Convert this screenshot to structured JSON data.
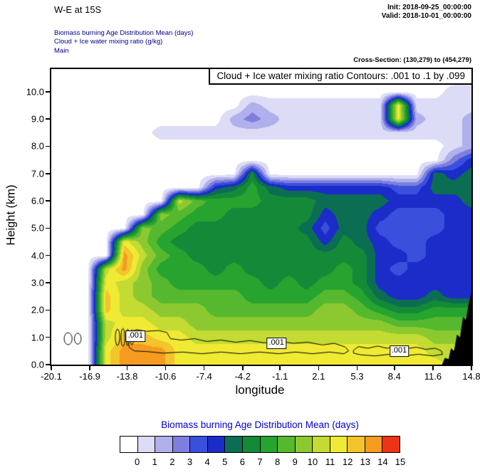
{
  "header": {
    "title": "W-E at 15S",
    "init": "Init: 2018-09-25_00:00:00",
    "valid": "Valid: 2018-10-01_00:00:00",
    "field_lines": [
      "Biomass burning Age Distribution Mean   (days)",
      "Cloud + Ice water mixing ratio   (g/kg)",
      "Main"
    ],
    "cross_section": "Cross-Section: (130,279) to (454,279)"
  },
  "plot": {
    "contour_info": "Cloud + Ice water mixing ratio Contours: .001 to .1 by .099",
    "xlabel": "longitude",
    "ylabel": "Height (km)",
    "x_ticks": [
      "-20.1",
      "-16.9",
      "-13.8",
      "-10.6",
      "-7.4",
      "-4.2",
      "-1.1",
      "2.1",
      "5.3",
      "8.4",
      "11.6",
      "14.8"
    ],
    "y_ticks": [
      "0.0",
      "1.0",
      "2.0",
      "3.0",
      "4.0",
      "5.0",
      "6.0",
      "7.0",
      "8.0",
      "9.0",
      "10.0"
    ]
  },
  "colorbar": {
    "title": "Biomass burning Age Distribution Mean  (days)",
    "labels": [
      "0",
      "1",
      "2",
      "3",
      "4",
      "5",
      "6",
      "7",
      "8",
      "9",
      "10",
      "11",
      "12",
      "13",
      "14",
      "15"
    ]
  },
  "chart_data": {
    "type": "heatmap",
    "field_name": "Biomass burning Age Distribution Mean (days)",
    "overlay_field": "Cloud + Ice water mixing ratio (g/kg)",
    "xlabel": "longitude",
    "ylabel": "Height (km)",
    "x_range": [
      -20.1,
      14.8
    ],
    "y_top": 10.83,
    "x": [
      -20.1,
      -18.58,
      -17.07,
      -15.55,
      -14.03,
      -12.52,
      -11.0,
      -9.49,
      -7.97,
      -6.45,
      -4.94,
      -3.42,
      -1.9,
      -0.39,
      1.13,
      2.64,
      4.16,
      5.68,
      7.19,
      8.71,
      10.23,
      11.74,
      13.26,
      14.8
    ],
    "y": [
      0,
      0.5,
      1,
      1.5,
      2,
      2.5,
      3,
      3.5,
      4,
      4.5,
      5,
      5.5,
      6,
      6.5,
      7,
      7.5,
      8,
      8.5,
      9,
      9.5,
      10,
      10.5
    ],
    "values": [
      [
        0,
        0,
        0,
        12,
        14,
        14,
        14,
        12,
        12,
        12,
        12,
        12,
        12,
        12,
        12,
        12,
        12,
        12,
        12,
        12,
        12,
        12,
        11,
        11
      ],
      [
        0,
        0,
        0,
        12,
        14,
        14,
        14,
        12,
        12,
        12,
        12,
        12,
        12,
        12,
        12,
        12,
        12,
        12,
        12,
        12,
        12,
        11,
        11,
        11
      ],
      [
        0,
        0,
        0,
        11,
        13,
        13,
        12,
        12,
        11,
        11,
        11,
        11,
        11,
        11,
        11,
        11,
        11,
        11,
        11,
        11,
        11,
        10,
        10,
        10
      ],
      [
        0,
        0,
        0,
        11,
        12,
        12,
        11,
        11,
        10,
        10,
        10,
        10,
        10,
        10,
        10,
        10,
        10,
        10,
        10,
        9,
        9,
        9,
        9,
        9
      ],
      [
        0,
        0,
        0,
        13,
        11,
        11,
        10,
        10,
        10,
        9,
        9,
        9,
        9,
        9,
        9,
        10,
        10,
        9,
        8,
        7,
        7,
        8,
        8,
        8
      ],
      [
        0,
        0,
        0,
        13,
        11,
        10,
        9,
        9,
        9,
        9,
        9,
        8,
        8,
        8,
        8,
        9,
        9,
        8,
        6,
        5,
        5,
        6,
        5,
        5
      ],
      [
        0,
        0,
        0,
        12,
        11,
        10,
        9,
        8,
        8,
        8,
        8,
        8,
        7,
        8,
        7,
        8,
        8,
        7,
        5,
        5,
        5,
        5,
        5,
        5
      ],
      [
        0,
        0,
        0,
        11,
        14,
        10,
        8,
        8,
        8,
        7,
        8,
        7,
        7,
        7,
        7,
        7,
        8,
        7,
        5,
        4,
        5,
        5,
        5,
        5
      ],
      [
        0,
        0,
        0,
        0,
        14,
        11,
        9,
        8,
        7,
        7,
        7,
        7,
        7,
        7,
        7,
        7,
        7,
        7,
        5,
        5,
        4,
        5,
        5,
        5
      ],
      [
        0,
        0,
        0,
        0,
        12,
        10,
        8,
        7,
        7,
        7,
        7,
        7,
        7,
        7,
        7,
        5,
        7,
        6,
        5,
        4,
        4,
        5,
        5,
        5
      ],
      [
        0,
        0,
        0,
        0,
        0,
        10,
        9,
        8,
        7,
        7,
        7,
        7,
        7,
        7,
        6,
        4,
        6,
        6,
        4,
        4,
        4,
        4,
        5,
        5
      ],
      [
        0,
        0,
        0,
        0,
        0,
        0,
        10,
        9,
        8,
        8,
        7,
        7,
        7,
        7,
        7,
        5,
        6,
        6,
        5,
        4,
        4,
        4,
        5,
        5
      ],
      [
        0,
        0,
        0,
        0,
        0,
        0,
        0,
        11,
        9,
        8,
        8,
        8,
        7,
        7,
        7,
        6,
        6,
        6,
        6,
        5,
        5,
        5,
        5,
        6
      ],
      [
        0,
        0,
        0,
        0,
        0,
        0,
        0,
        0,
        0,
        5,
        6,
        8,
        6,
        5,
        5,
        5,
        5,
        5,
        5,
        4,
        4,
        6,
        6,
        6
      ],
      [
        0,
        0,
        0,
        0,
        0,
        0,
        0,
        0,
        0,
        0,
        0,
        7,
        0,
        0,
        0,
        0,
        0,
        0,
        0,
        0,
        0,
        6,
        5,
        6
      ],
      [
        0,
        0,
        0,
        0,
        0,
        0,
        0,
        0,
        0,
        0,
        0,
        0,
        0,
        0,
        0,
        0,
        0,
        0,
        0,
        0,
        0,
        0,
        3,
        5
      ],
      [
        0,
        0,
        0,
        0,
        0,
        0,
        0,
        0,
        0,
        0,
        0,
        0,
        0,
        0,
        0,
        0,
        0,
        0,
        0,
        0,
        0,
        0,
        1,
        2
      ],
      [
        0,
        0,
        0,
        0,
        0,
        0,
        1,
        1,
        1,
        1,
        1,
        1,
        1,
        1,
        1,
        1,
        1,
        1,
        1,
        1,
        1,
        1,
        1,
        2
      ],
      [
        0,
        0,
        0,
        0,
        0,
        0,
        0,
        0,
        0,
        0,
        2,
        3,
        2,
        1,
        1,
        1,
        1,
        1,
        1,
        12,
        2,
        1,
        1,
        2
      ],
      [
        0,
        0,
        0,
        0,
        0,
        0,
        0,
        0,
        0,
        0,
        0,
        2,
        1,
        1,
        1,
        1,
        1,
        1,
        1,
        12,
        1,
        1,
        1,
        1
      ],
      [
        0,
        0,
        0,
        0,
        0,
        0,
        0,
        0,
        0,
        0,
        0,
        0,
        0,
        0,
        0,
        0,
        0,
        0,
        0,
        0,
        0,
        0,
        1,
        1
      ],
      [
        0,
        0,
        0,
        0,
        0,
        0,
        0,
        0,
        0,
        0,
        0,
        0,
        0,
        0,
        0,
        0,
        0,
        0,
        0,
        0,
        0,
        0,
        0,
        0
      ]
    ],
    "level_values": [
      0,
      1,
      2,
      3,
      4,
      5,
      6,
      7,
      8,
      9,
      10,
      11,
      12,
      13,
      14,
      15
    ],
    "level_colors": [
      "#ffffff",
      "#dcdcf6",
      "#b0b0ec",
      "#7e7ede",
      "#3a50dc",
      "#1b2cc8",
      "#0b6e52",
      "#148a38",
      "#27a32f",
      "#55b82e",
      "#8cc930",
      "#c3db32",
      "#f0ea34",
      "#f4c42c",
      "#f59b20",
      "#ee3417"
    ],
    "terrain": [
      [
        12.35,
        0
      ],
      [
        12.6,
        0.25
      ],
      [
        12.9,
        0.2
      ],
      [
        13.1,
        0.6
      ],
      [
        13.35,
        0.5
      ],
      [
        13.6,
        1.1
      ],
      [
        13.85,
        1.0
      ],
      [
        14.1,
        1.75
      ],
      [
        14.35,
        1.65
      ],
      [
        14.55,
        2.2
      ],
      [
        14.8,
        2.65
      ],
      [
        14.8,
        0
      ]
    ],
    "contour_overlay": {
      "level_range": ".001 to .1 by .099",
      "ellipses": [
        {
          "cx": -18.7,
          "cy": 0.95,
          "rx": 0.33,
          "ry": 0.22
        },
        {
          "cx": -17.9,
          "cy": 0.95,
          "rx": 0.28,
          "ry": 0.2
        },
        {
          "cx": -14.6,
          "cy": 1.0,
          "rx": 0.18,
          "ry": 0.3
        },
        {
          "cx": -14.15,
          "cy": 1.0,
          "rx": 0.16,
          "ry": 0.33
        },
        {
          "cx": -13.75,
          "cy": 1.0,
          "rx": 0.15,
          "ry": 0.3
        },
        {
          "cx": -13.4,
          "cy": 1.0,
          "rx": 0.14,
          "ry": 0.28
        }
      ],
      "paths": [
        [
          [
            -13.6,
            0.62
          ],
          [
            -13.8,
            0.9
          ],
          [
            -13.7,
            1.18
          ],
          [
            -13.0,
            1.28
          ],
          [
            -12.2,
            1.22
          ],
          [
            -11.2,
            1.25
          ],
          [
            -10.5,
            1.18
          ],
          [
            -10.2,
            0.95
          ],
          [
            -9.3,
            0.9
          ],
          [
            -8.2,
            0.95
          ],
          [
            -7.2,
            0.85
          ],
          [
            -6.0,
            0.9
          ],
          [
            -4.8,
            0.82
          ],
          [
            -3.6,
            0.88
          ],
          [
            -2.4,
            0.8
          ],
          [
            -1.2,
            0.86
          ],
          [
            0.0,
            0.78
          ],
          [
            1.2,
            0.82
          ],
          [
            2.4,
            0.72
          ],
          [
            3.4,
            0.78
          ],
          [
            4.3,
            0.65
          ],
          [
            4.6,
            0.5
          ],
          [
            4.2,
            0.4
          ],
          [
            3.0,
            0.46
          ],
          [
            1.6,
            0.4
          ],
          [
            0.2,
            0.46
          ],
          [
            -1.2,
            0.4
          ],
          [
            -2.8,
            0.46
          ],
          [
            -4.4,
            0.4
          ],
          [
            -6.0,
            0.46
          ],
          [
            -7.6,
            0.4
          ],
          [
            -9.2,
            0.46
          ],
          [
            -10.8,
            0.42
          ],
          [
            -12.2,
            0.48
          ],
          [
            -13.2,
            0.5
          ]
        ],
        [
          [
            5.0,
            0.52
          ],
          [
            5.4,
            0.66
          ],
          [
            6.2,
            0.6
          ],
          [
            7.0,
            0.68
          ],
          [
            7.8,
            0.6
          ],
          [
            8.6,
            0.66
          ],
          [
            9.4,
            0.58
          ],
          [
            10.2,
            0.64
          ],
          [
            11.0,
            0.56
          ],
          [
            11.8,
            0.6
          ],
          [
            12.3,
            0.5
          ],
          [
            12.4,
            0.38
          ],
          [
            11.6,
            0.32
          ],
          [
            10.4,
            0.38
          ],
          [
            9.2,
            0.32
          ],
          [
            8.0,
            0.38
          ],
          [
            6.8,
            0.32
          ],
          [
            5.6,
            0.36
          ],
          [
            5.0,
            0.42
          ]
        ]
      ],
      "labels": [
        {
          "text": ".001",
          "lon": -13.1,
          "h": 1.05
        },
        {
          "text": ".001",
          "lon": -1.4,
          "h": 0.78
        },
        {
          "text": ".001",
          "lon": 8.8,
          "h": 0.5
        }
      ]
    }
  }
}
